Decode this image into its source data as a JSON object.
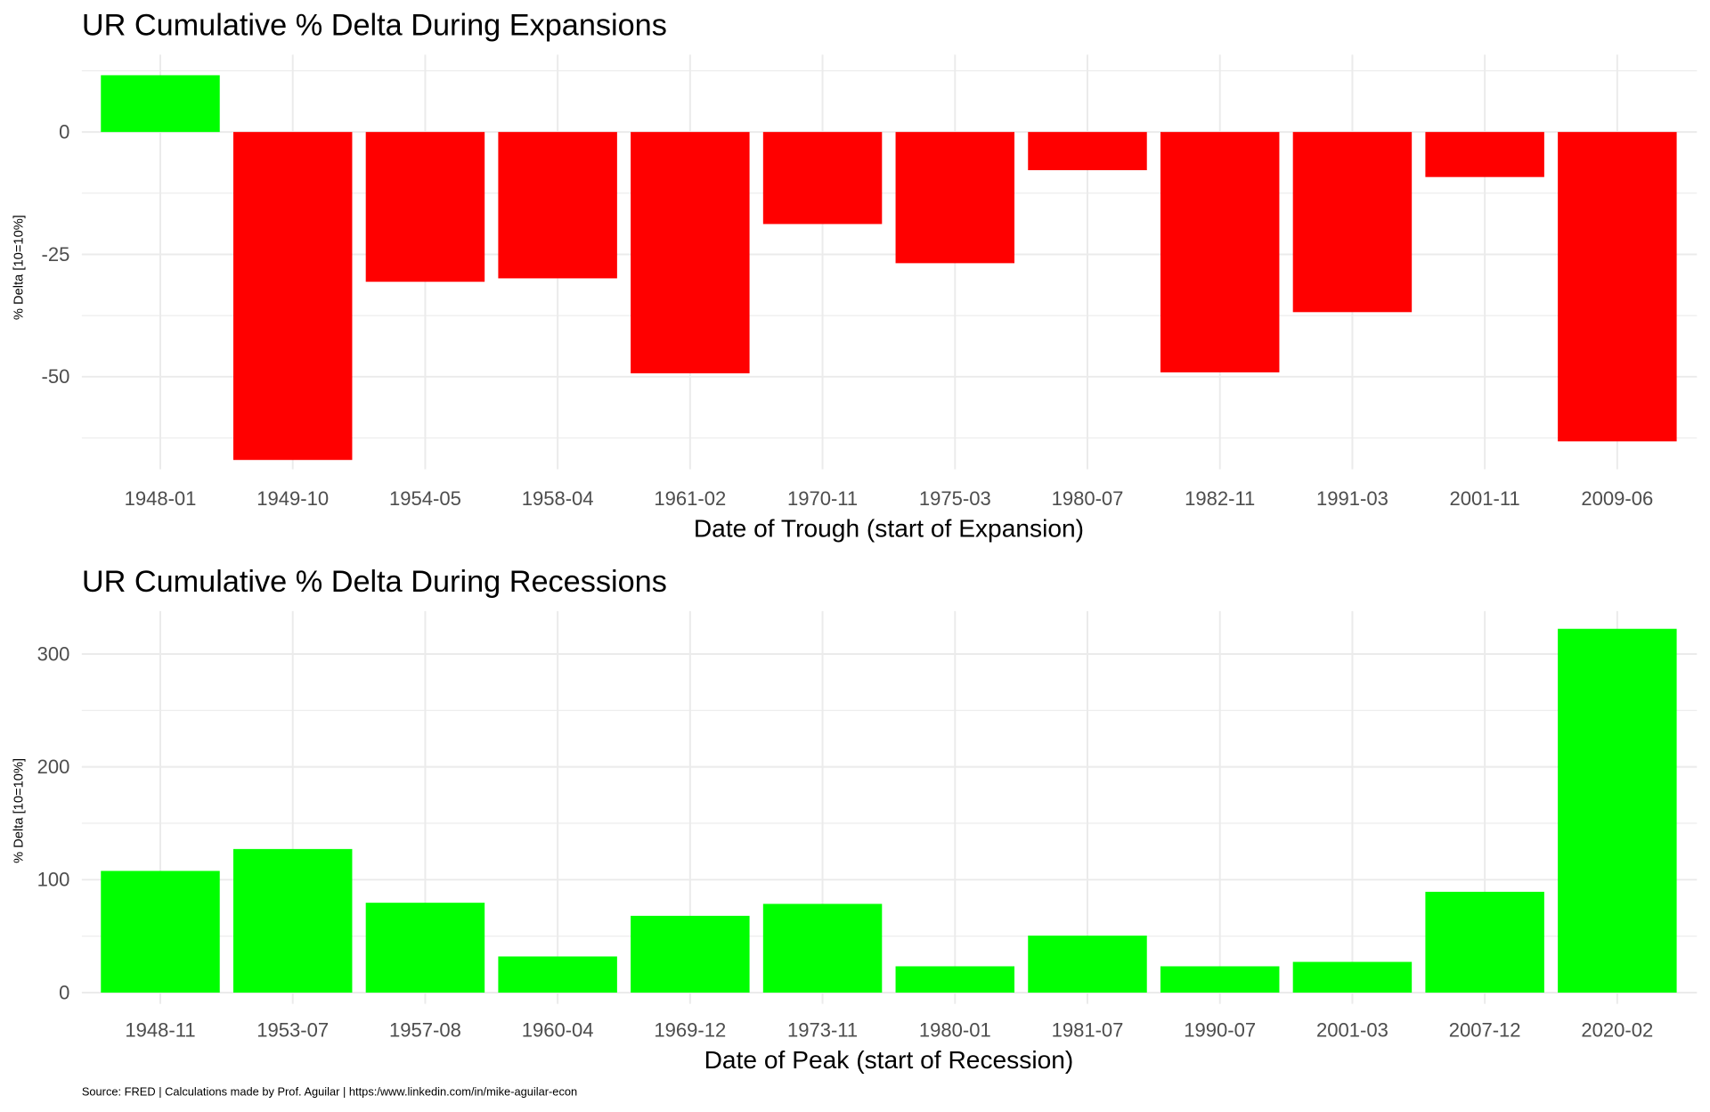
{
  "caption": "Source: FRED | Calculations made by Prof. Aguilar | https:/www.linkedin.com/in/mike-aguilar-econ",
  "colors": {
    "positive": "#00FF00",
    "negative": "#FF0000",
    "grid": "#EBEBEB"
  },
  "chart_data": [
    {
      "type": "bar",
      "title": "UR Cumulative % Delta During Expansions",
      "xlabel": "Date of Trough (start of Expansion)",
      "ylabel": "% Delta [10=10%]",
      "categories": [
        "1948-01",
        "1949-10",
        "1954-05",
        "1958-04",
        "1961-02",
        "1970-11",
        "1975-03",
        "1980-07",
        "1982-11",
        "1991-03",
        "2001-11",
        "2009-06"
      ],
      "values": [
        11.6,
        -67.0,
        -30.6,
        -29.9,
        -49.3,
        -18.8,
        -26.8,
        -7.8,
        -49.1,
        -36.8,
        -9.2,
        -63.2
      ],
      "yticks": [
        0,
        -25,
        -50
      ],
      "ylim": [
        -68.9,
        15.8
      ],
      "grid": true
    },
    {
      "type": "bar",
      "title": "UR Cumulative % Delta During Recessions",
      "xlabel": "Date of Peak (start of Recession)",
      "ylabel": "% Delta [10=10%]",
      "categories": [
        "1948-11",
        "1953-07",
        "1957-08",
        "1960-04",
        "1969-12",
        "1973-11",
        "1980-01",
        "1981-07",
        "1990-07",
        "2001-03",
        "2007-12",
        "2020-02"
      ],
      "values": [
        107.8,
        127.2,
        79.6,
        32.0,
        68.0,
        78.6,
        23.3,
        50.5,
        23.3,
        27.2,
        89.3,
        322.3
      ],
      "yticks": [
        0,
        100,
        200,
        300
      ],
      "ylim": [
        -10,
        338
      ],
      "grid": true
    }
  ]
}
